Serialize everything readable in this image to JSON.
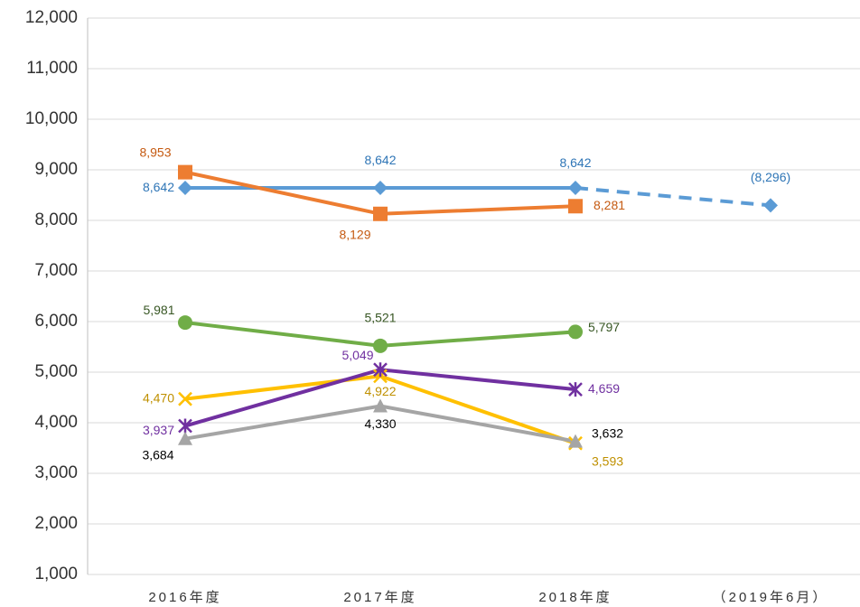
{
  "chart_data": {
    "type": "line",
    "categories": [
      "2016年度",
      "2017年度",
      "2018年度",
      "（2019年6月）"
    ],
    "ylim": [
      1000,
      12000
    ],
    "yticks": [
      {
        "value": 1000,
        "label": "1,000"
      },
      {
        "value": 2000,
        "label": "2,000"
      },
      {
        "value": 3000,
        "label": "3,000"
      },
      {
        "value": 4000,
        "label": "4,000"
      },
      {
        "value": 5000,
        "label": "5,000"
      },
      {
        "value": 6000,
        "label": "6,000"
      },
      {
        "value": 7000,
        "label": "7,000"
      },
      {
        "value": 8000,
        "label": "8,000"
      },
      {
        "value": 9000,
        "label": "9,000"
      },
      {
        "value": 10000,
        "label": "10,000"
      },
      {
        "value": 11000,
        "label": "11,000"
      },
      {
        "value": 12000,
        "label": "12,000"
      }
    ],
    "grid": true,
    "series": [
      {
        "color": "#5b9bd5",
        "label_color": "#2e75b6",
        "marker": "diamond",
        "dashed_from_index": 2,
        "values": [
          8642,
          8642,
          8642,
          8296
        ],
        "value_labels": [
          "8,642",
          "8,642",
          "8,642",
          "(8,296)"
        ]
      },
      {
        "color": "#ed7d31",
        "label_color": "#c55a11",
        "marker": "square",
        "values": [
          8953,
          8129,
          8281,
          null
        ],
        "value_labels": [
          "8,953",
          "8,129",
          "8,281",
          null
        ]
      },
      {
        "color": "#70ad47",
        "label_color": "#375623",
        "marker": "circle",
        "values": [
          5981,
          5521,
          5797,
          null
        ],
        "value_labels": [
          "5,981",
          "5,521",
          "5,797",
          null
        ]
      },
      {
        "color": "#ffc000",
        "label_color": "#bf9000",
        "marker": "x",
        "values": [
          4470,
          4922,
          3593,
          null
        ],
        "value_labels": [
          "4,470",
          "4,922",
          "3,593",
          null
        ]
      },
      {
        "color": "#7030a0",
        "label_color": "#7030a0",
        "marker": "star",
        "values": [
          3937,
          5049,
          4659,
          null
        ],
        "value_labels": [
          "3,937",
          "5,049",
          "4,659",
          null
        ]
      },
      {
        "color": "#a5a5a5",
        "label_color": "#000000",
        "marker": "triangle",
        "values": [
          3684,
          4330,
          3632,
          null
        ],
        "value_labels": [
          "3,684",
          "4,330",
          "3,632",
          null
        ]
      }
    ]
  }
}
